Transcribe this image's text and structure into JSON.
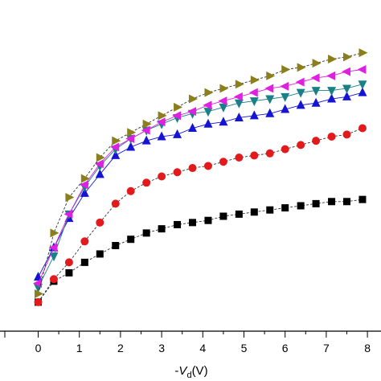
{
  "chart_data": {
    "type": "scatter",
    "xlabel_prefix": "-",
    "xlabel_var": "V",
    "xlabel_sub": "d",
    "xlabel_unit": "(V)",
    "xlim": [
      -0.8,
      8.2
    ],
    "xticks": [
      0,
      1,
      2,
      3,
      4,
      5,
      6,
      7,
      8
    ],
    "grid": false,
    "series": [
      {
        "marker": "square",
        "color": "#000000",
        "line": "dashed",
        "x": [
          0,
          0.38,
          0.75,
          1.13,
          1.5,
          1.88,
          2.25,
          2.63,
          3,
          3.38,
          3.75,
          4.13,
          4.5,
          4.88,
          5.25,
          5.63,
          6,
          6.38,
          6.75,
          7.13,
          7.5,
          7.88
        ],
        "y": [
          0.1,
          0.2,
          0.24,
          0.29,
          0.33,
          0.37,
          0.4,
          0.43,
          0.45,
          0.47,
          0.48,
          0.49,
          0.51,
          0.52,
          0.53,
          0.54,
          0.55,
          0.56,
          0.57,
          0.58,
          0.58,
          0.59
        ]
      },
      {
        "marker": "circle",
        "color": "#e31a1c",
        "line": "dashed",
        "x": [
          0,
          0.38,
          0.75,
          1.13,
          1.5,
          1.88,
          2.25,
          2.63,
          3,
          3.38,
          3.75,
          4.13,
          4.5,
          4.88,
          5.25,
          5.63,
          6,
          6.38,
          6.75,
          7.13,
          7.5,
          7.88
        ],
        "y": [
          0.1,
          0.21,
          0.29,
          0.39,
          0.48,
          0.57,
          0.63,
          0.67,
          0.7,
          0.72,
          0.74,
          0.75,
          0.77,
          0.79,
          0.8,
          0.81,
          0.83,
          0.85,
          0.87,
          0.89,
          0.9,
          0.93
        ]
      },
      {
        "marker": "triangle-up",
        "color": "#1414d2",
        "line": "solid",
        "x": [
          0,
          0.38,
          0.75,
          1.13,
          1.5,
          1.88,
          2.25,
          2.63,
          3,
          3.38,
          3.75,
          4.13,
          4.5,
          4.88,
          5.25,
          5.63,
          6,
          6.38,
          6.75,
          7.13,
          7.5,
          7.88
        ],
        "y": [
          0.22,
          0.36,
          0.5,
          0.62,
          0.71,
          0.8,
          0.84,
          0.87,
          0.89,
          0.9,
          0.93,
          0.95,
          0.96,
          0.98,
          0.99,
          1.0,
          1.02,
          1.04,
          1.05,
          1.07,
          1.08,
          1.1
        ]
      },
      {
        "marker": "triangle-down",
        "color": "#1a8088",
        "line": "solid",
        "x": [
          0,
          0.38,
          0.75,
          1.13,
          1.5,
          1.88,
          2.25,
          2.63,
          3,
          3.38,
          3.75,
          4.13,
          4.5,
          4.88,
          5.25,
          5.63,
          6,
          6.38,
          6.75,
          7.13,
          7.5,
          7.88
        ],
        "y": [
          0.17,
          0.32,
          0.52,
          0.65,
          0.75,
          0.83,
          0.88,
          0.92,
          0.95,
          0.98,
          1.0,
          1.01,
          1.03,
          1.05,
          1.06,
          1.07,
          1.08,
          1.1,
          1.11,
          1.11,
          1.12,
          1.14
        ]
      },
      {
        "marker": "triangle-left",
        "color": "#e020e0",
        "line": "solid",
        "x": [
          0,
          0.38,
          0.75,
          1.13,
          1.5,
          1.88,
          2.25,
          2.63,
          3,
          3.38,
          3.75,
          4.13,
          4.5,
          4.88,
          5.25,
          5.63,
          6,
          6.38,
          6.75,
          7.13,
          7.5,
          7.88
        ],
        "y": [
          0.19,
          0.36,
          0.52,
          0.66,
          0.76,
          0.84,
          0.88,
          0.92,
          0.96,
          0.99,
          1.01,
          1.04,
          1.06,
          1.08,
          1.1,
          1.12,
          1.13,
          1.15,
          1.17,
          1.18,
          1.2,
          1.21
        ]
      },
      {
        "marker": "triangle-right",
        "color": "#8a7f1c",
        "line": "dashed",
        "x": [
          0,
          0.38,
          0.75,
          1.13,
          1.5,
          1.88,
          2.25,
          2.63,
          3,
          3.38,
          3.75,
          4.13,
          4.5,
          4.88,
          5.25,
          5.63,
          6,
          6.38,
          6.75,
          7.13,
          7.5,
          7.88
        ],
        "y": [
          0.14,
          0.43,
          0.6,
          0.69,
          0.79,
          0.87,
          0.91,
          0.95,
          0.99,
          1.03,
          1.07,
          1.1,
          1.12,
          1.14,
          1.16,
          1.18,
          1.21,
          1.22,
          1.24,
          1.26,
          1.27,
          1.29
        ]
      }
    ]
  }
}
